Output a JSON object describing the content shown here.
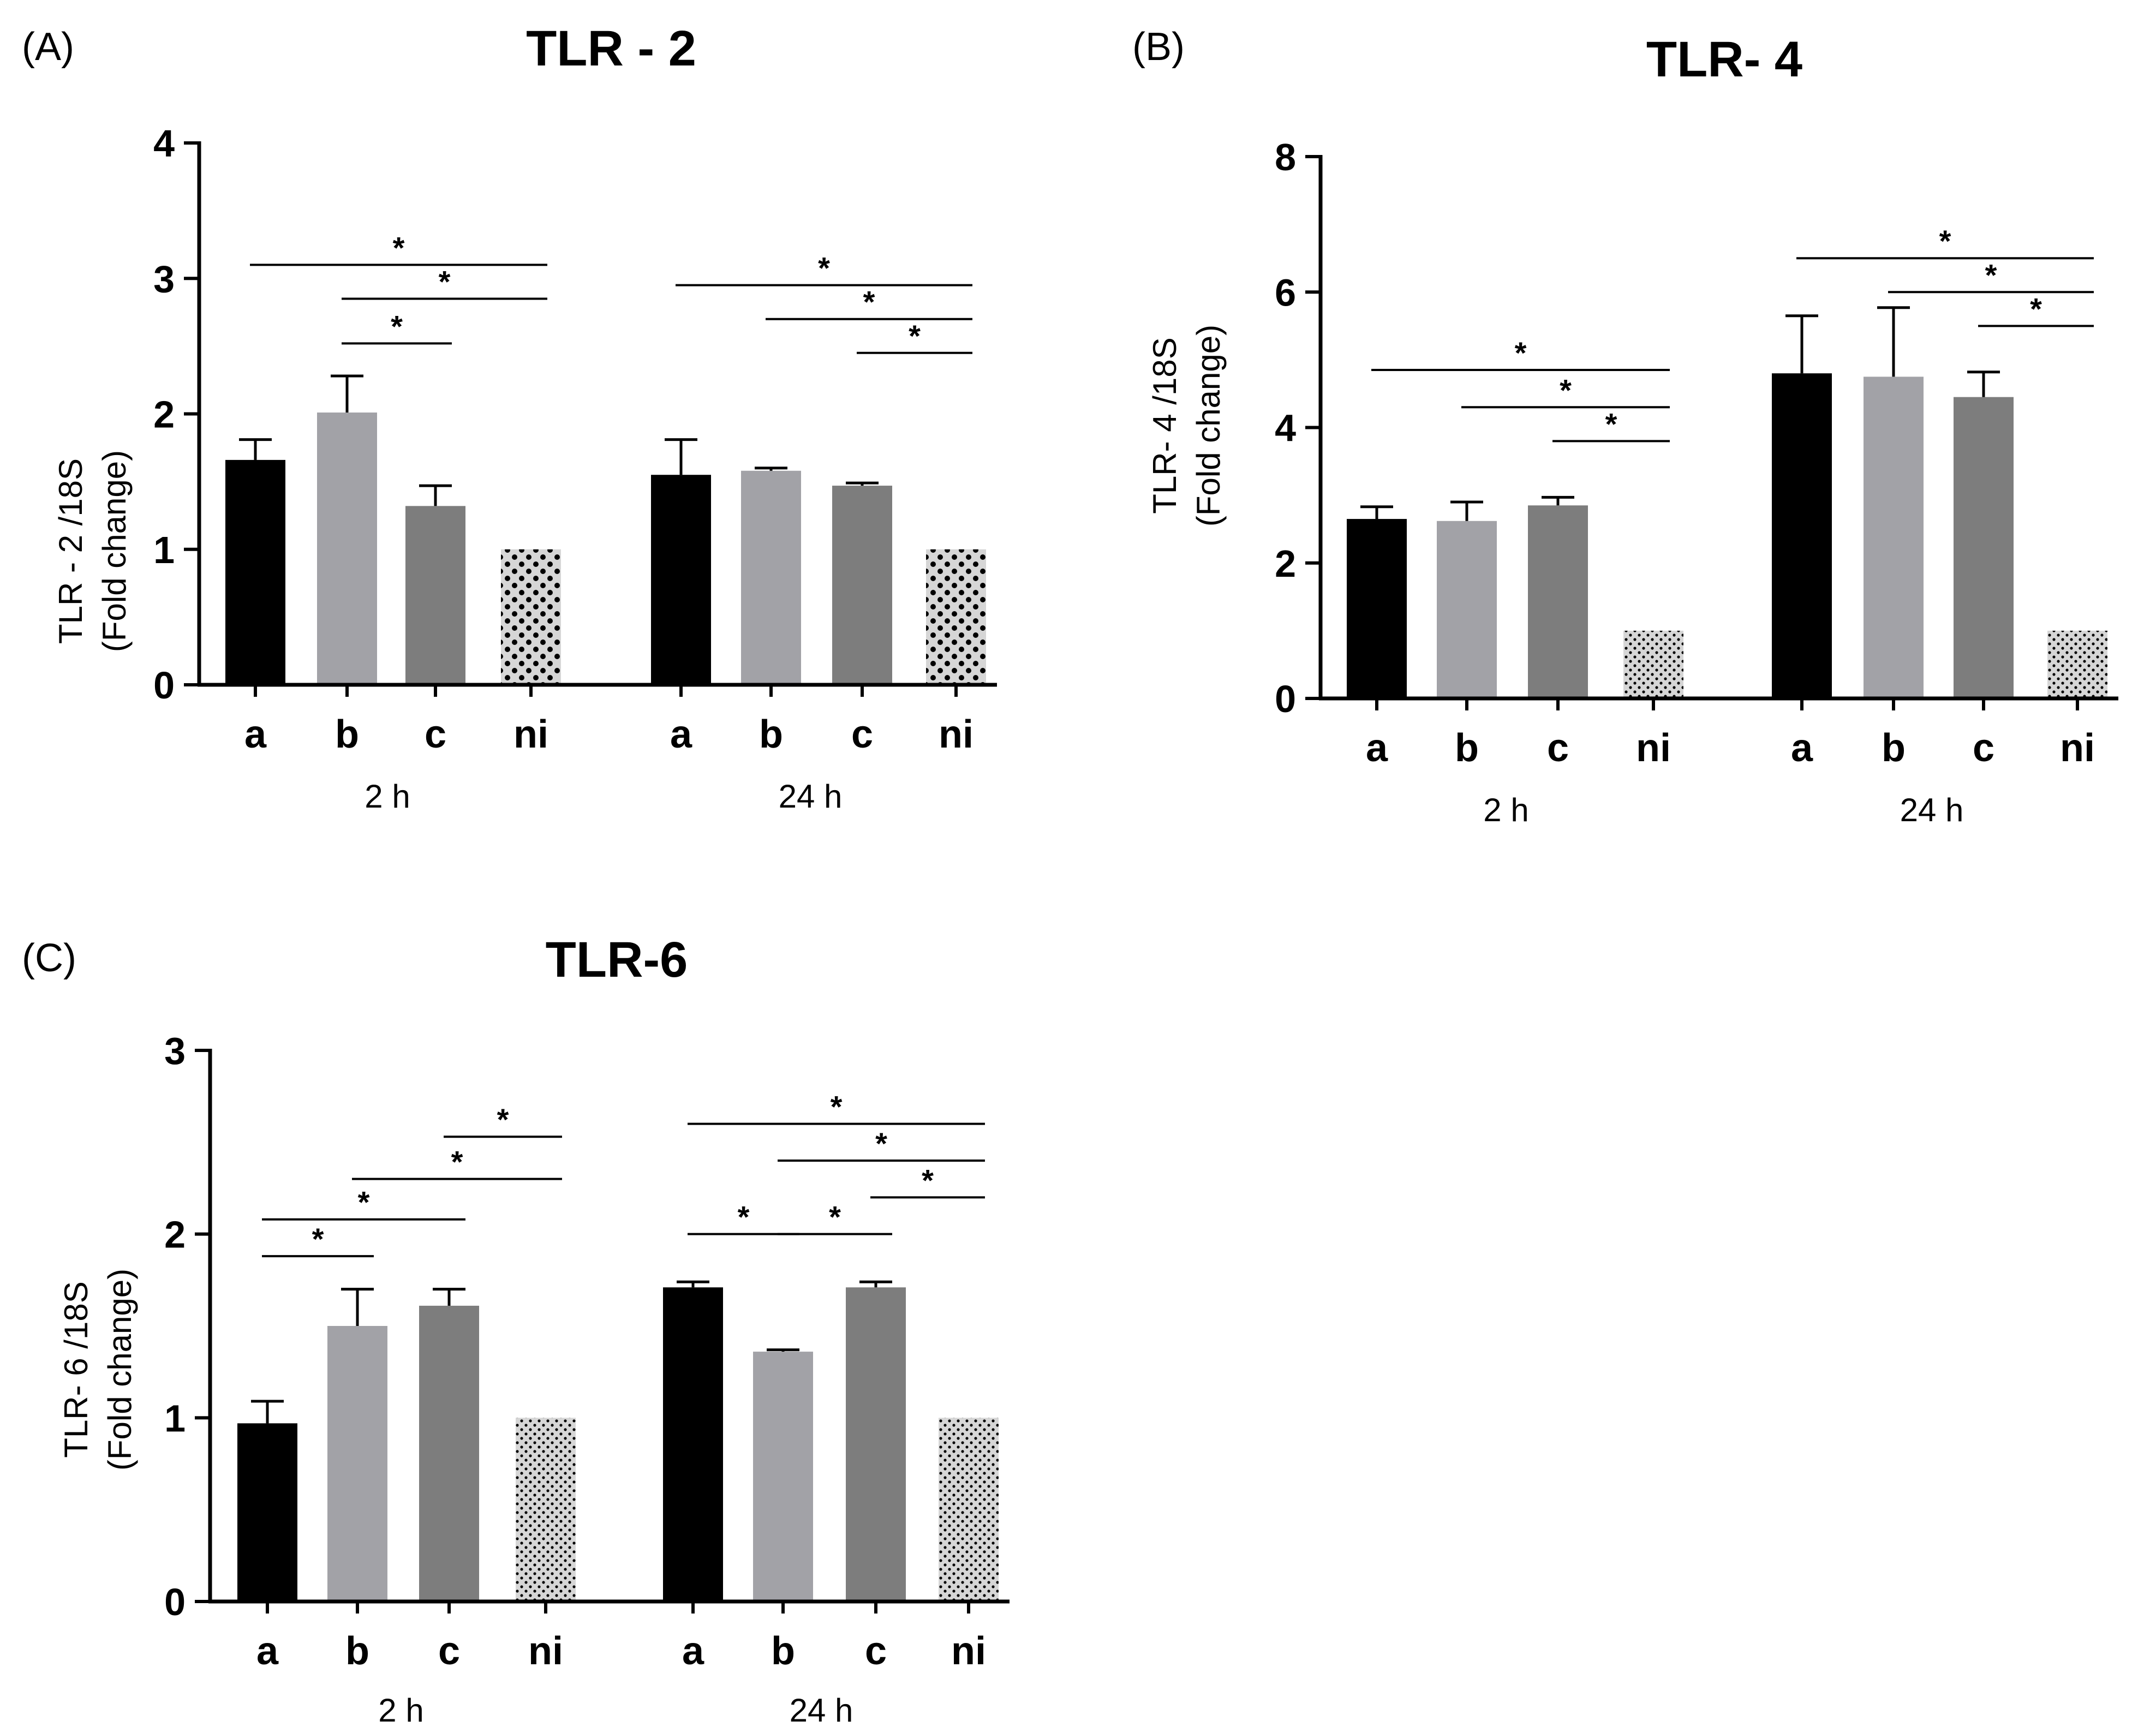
{
  "chart_data": [
    {
      "type": "bar",
      "panel": "(A)",
      "title": "TLR - 2",
      "ylabel_line1": "TLR - 2 /18S",
      "ylabel_line2": "(Fold change)",
      "ylim": [
        0,
        4
      ],
      "yticks": [
        0,
        1,
        2,
        3,
        4
      ],
      "groups": [
        "2 h",
        "24 h"
      ],
      "categories": [
        "a",
        "b",
        "c",
        "ni"
      ],
      "values": [
        [
          1.66,
          2.01,
          1.32,
          1.0
        ],
        [
          1.55,
          1.58,
          1.47,
          1.0
        ]
      ],
      "errors": [
        [
          0.15,
          0.27,
          0.15,
          0
        ],
        [
          0.26,
          0.02,
          0.02,
          0
        ]
      ],
      "significance": [
        {
          "group": 0,
          "from": 0,
          "to": 3,
          "y": 3.1,
          "label": "*"
        },
        {
          "group": 0,
          "from": 1,
          "to": 3,
          "y": 2.85,
          "label": "*"
        },
        {
          "group": 0,
          "from": 1,
          "to": 2,
          "y": 2.52,
          "label": "*"
        },
        {
          "group": 1,
          "from": 0,
          "to": 3,
          "y": 2.95,
          "label": "*"
        },
        {
          "group": 1,
          "from": 1,
          "to": 3,
          "y": 2.7,
          "label": "*"
        },
        {
          "group": 1,
          "from": 2,
          "to": 3,
          "y": 2.45,
          "label": "*"
        }
      ]
    },
    {
      "type": "bar",
      "panel": "(B)",
      "title": "TLR- 4",
      "ylabel_line1": "TLR- 4 /18S",
      "ylabel_line2": "(Fold change)",
      "ylim": [
        0,
        8
      ],
      "yticks": [
        0,
        2,
        4,
        6,
        8
      ],
      "groups": [
        "2 h",
        "24 h"
      ],
      "categories": [
        "a",
        "b",
        "c",
        "ni"
      ],
      "values": [
        [
          2.65,
          2.62,
          2.85,
          1.0
        ],
        [
          4.8,
          4.75,
          4.45,
          1.0
        ]
      ],
      "errors": [
        [
          0.18,
          0.28,
          0.12,
          0
        ],
        [
          0.85,
          1.02,
          0.37,
          0
        ]
      ],
      "significance": [
        {
          "group": 0,
          "from": 0,
          "to": 3,
          "y": 4.85,
          "label": "*"
        },
        {
          "group": 0,
          "from": 1,
          "to": 3,
          "y": 4.3,
          "label": "*"
        },
        {
          "group": 0,
          "from": 2,
          "to": 3,
          "y": 3.8,
          "label": "*"
        },
        {
          "group": 1,
          "from": 0,
          "to": 3,
          "y": 6.5,
          "label": "*"
        },
        {
          "group": 1,
          "from": 1,
          "to": 3,
          "y": 6.0,
          "label": "*"
        },
        {
          "group": 1,
          "from": 2,
          "to": 3,
          "y": 5.5,
          "label": "*"
        }
      ]
    },
    {
      "type": "bar",
      "panel": "(C)",
      "title": "TLR-6",
      "ylabel_line1": "TLR- 6 /18S",
      "ylabel_line2": "(Fold change)",
      "ylim": [
        0,
        3
      ],
      "yticks": [
        0,
        1,
        2,
        3
      ],
      "groups": [
        "2 h",
        "24 h"
      ],
      "categories": [
        "a",
        "b",
        "c",
        "ni"
      ],
      "values": [
        [
          0.97,
          1.5,
          1.61,
          1.0
        ],
        [
          1.71,
          1.36,
          1.71,
          1.0
        ]
      ],
      "errors": [
        [
          0.12,
          0.2,
          0.09,
          0
        ],
        [
          0.03,
          0.01,
          0.03,
          0
        ]
      ],
      "significance": [
        {
          "group": 0,
          "from": 0,
          "to": 1,
          "y": 1.88,
          "label": "*"
        },
        {
          "group": 0,
          "from": 0,
          "to": 2,
          "y": 2.08,
          "label": "*"
        },
        {
          "group": 0,
          "from": 1,
          "to": 3,
          "y": 2.3,
          "label": "*"
        },
        {
          "group": 0,
          "from": 2,
          "to": 3,
          "y": 2.53,
          "label": "*"
        },
        {
          "group": 1,
          "from": 0,
          "to": 1,
          "y": 2.0,
          "label": "*"
        },
        {
          "group": 1,
          "from": 1,
          "to": 2,
          "y": 2.0,
          "label": "*"
        },
        {
          "group": 1,
          "from": 2,
          "to": 3,
          "y": 2.2,
          "label": "*"
        },
        {
          "group": 1,
          "from": 1,
          "to": 3,
          "y": 2.4,
          "label": "*"
        },
        {
          "group": 1,
          "from": 0,
          "to": 3,
          "y": 2.6,
          "label": "*"
        }
      ]
    }
  ],
  "colors": {
    "a": "#000000",
    "b": "#a2a2a7",
    "c": "#7d7d7d",
    "ni_fill": "#d6d6d6",
    "ni_dot": "#000000"
  }
}
